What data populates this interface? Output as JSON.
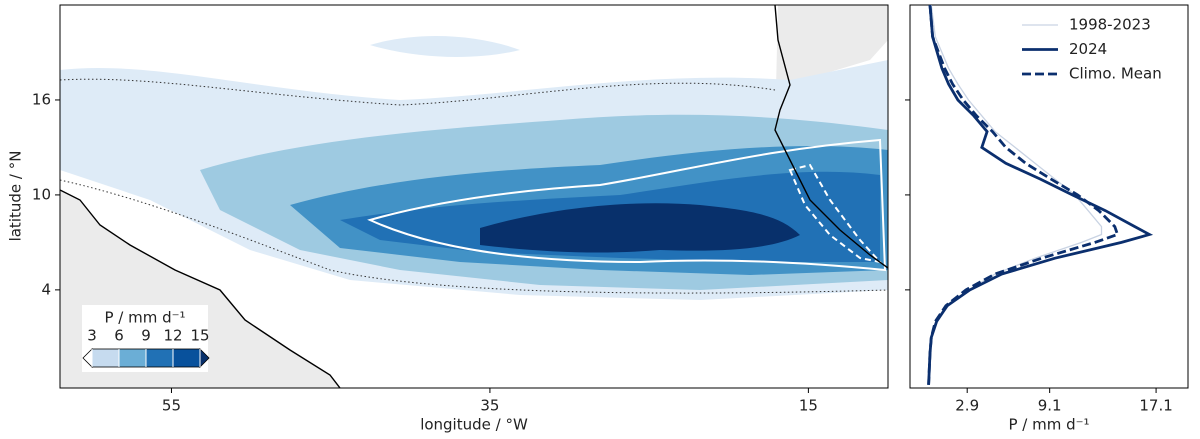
{
  "chart_data": [
    {
      "type": "map",
      "xlabel": "longitude / °W",
      "ylabel": "latitude / °N",
      "xlim": [
        62,
        10
      ],
      "ylim": [
        -2.2,
        22
      ],
      "xticks": [
        55,
        35,
        15
      ],
      "yticks": [
        4,
        10,
        16
      ],
      "land_color": "#ebebeb",
      "colorbar": {
        "label": "P / mm d⁻¹",
        "ticks": [
          3,
          6,
          9,
          12,
          15
        ],
        "colors": [
          "#ffffff",
          "#c6dbef",
          "#6baed6",
          "#2171b5",
          "#08519c",
          "#08306b"
        ]
      }
    },
    {
      "type": "line",
      "xlabel": "P / mm d⁻¹",
      "xlim": [
        -1.4,
        19.5
      ],
      "ylim": [
        -2.2,
        22
      ],
      "xticks": [
        2.9,
        9.1,
        17.1
      ],
      "yticks": [
        4,
        10,
        16
      ],
      "legend": "upper right",
      "y": [
        22,
        20,
        18,
        17,
        16,
        15,
        14,
        13,
        12,
        11,
        10,
        9,
        8,
        7.5,
        7,
        6,
        5,
        4,
        3,
        2,
        1,
        0,
        -2
      ],
      "series": [
        {
          "name": "1998-2023",
          "color": "#c9d3e3",
          "style": "thin",
          "values": [
            0.2,
            0.5,
            1.5,
            2.2,
            3.0,
            4.0,
            5.0,
            6.5,
            8.0,
            9.5,
            11.0,
            12.0,
            13.0,
            13.0,
            11.5,
            8.0,
            5.0,
            3.0,
            1.5,
            0.6,
            0.2,
            0.1,
            0.0
          ]
        },
        {
          "name": "2024",
          "color": "#0b2f6e",
          "style": "solid",
          "values": [
            0.1,
            0.3,
            1.0,
            1.5,
            2.2,
            3.4,
            4.4,
            4.0,
            5.8,
            8.4,
            10.8,
            13.3,
            15.5,
            16.6,
            14.5,
            9.5,
            5.5,
            3.1,
            1.4,
            0.6,
            0.2,
            0.1,
            0.0
          ]
        },
        {
          "name": "Climo. Mean",
          "color": "#0b2f6e",
          "style": "dashed",
          "values": [
            0.1,
            0.3,
            1.2,
            1.8,
            2.6,
            3.6,
            4.8,
            5.8,
            7.3,
            9.2,
            11.2,
            12.8,
            14.0,
            14.2,
            12.5,
            8.5,
            5.0,
            2.8,
            1.3,
            0.5,
            0.2,
            0.1,
            0.0
          ]
        }
      ]
    }
  ]
}
